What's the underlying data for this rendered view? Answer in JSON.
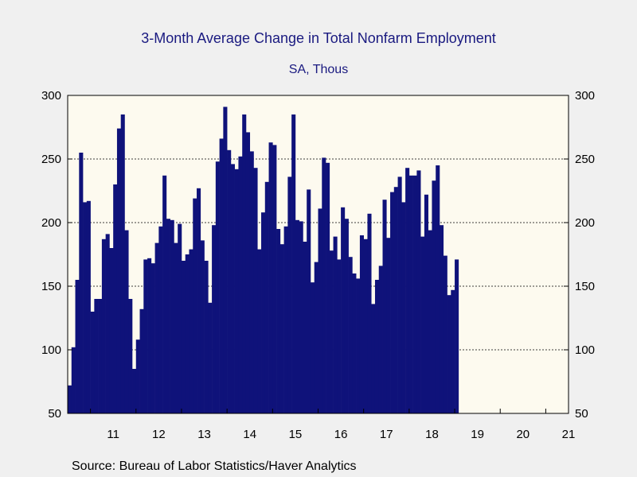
{
  "chart_data": {
    "type": "bar",
    "title": "3-Month Average Change in Total Nonfarm Employment",
    "subtitle": "SA, Thous",
    "source": "Source:  Bureau of Labor Statistics/Haver Analytics",
    "y_ticks": [
      50,
      100,
      150,
      200,
      250,
      300
    ],
    "ylim": [
      50,
      300
    ],
    "x_tick_labels": [
      "11",
      "12",
      "13",
      "14",
      "15",
      "16",
      "17",
      "18",
      "19",
      "20",
      "21"
    ],
    "x_start": "2010-07",
    "x_end": "2021-06",
    "grid": "horizontal-dashed",
    "colors": {
      "bar": "#0f127a",
      "plot_background": "#fdfaef",
      "page_background": "#f0f0f0",
      "text": "#1a1a80"
    },
    "x": [
      "2010-07",
      "2010-08",
      "2010-09",
      "2010-10",
      "2010-11",
      "2010-12",
      "2011-01",
      "2011-02",
      "2011-03",
      "2011-04",
      "2011-05",
      "2011-06",
      "2011-07",
      "2011-08",
      "2011-09",
      "2011-10",
      "2011-11",
      "2011-12",
      "2012-01",
      "2012-02",
      "2012-03",
      "2012-04",
      "2012-05",
      "2012-06",
      "2012-07",
      "2012-08",
      "2012-09",
      "2012-10",
      "2012-11",
      "2012-12",
      "2013-01",
      "2013-02",
      "2013-03",
      "2013-04",
      "2013-05",
      "2013-06",
      "2013-07",
      "2013-08",
      "2013-09",
      "2013-10",
      "2013-11",
      "2013-12",
      "2014-01",
      "2014-02",
      "2014-03",
      "2014-04",
      "2014-05",
      "2014-06",
      "2014-07",
      "2014-08",
      "2014-09",
      "2014-10",
      "2014-11",
      "2014-12",
      "2015-01",
      "2015-02",
      "2015-03",
      "2015-04",
      "2015-05",
      "2015-06",
      "2015-07",
      "2015-08",
      "2015-09",
      "2015-10",
      "2015-11",
      "2015-12",
      "2016-01",
      "2016-02",
      "2016-03",
      "2016-04",
      "2016-05",
      "2016-06",
      "2016-07",
      "2016-08",
      "2016-09",
      "2016-10",
      "2016-11",
      "2016-12",
      "2017-01",
      "2017-02",
      "2017-03",
      "2017-04",
      "2017-05",
      "2017-06",
      "2017-07",
      "2017-08",
      "2017-09",
      "2017-10",
      "2017-11",
      "2017-12",
      "2018-01",
      "2018-02",
      "2018-03",
      "2018-04",
      "2018-05",
      "2018-06",
      "2018-07",
      "2018-08",
      "2018-09",
      "2018-10",
      "2018-11",
      "2018-12",
      "2019-01"
    ],
    "values": [
      72,
      102,
      155,
      255,
      216,
      217,
      130,
      140,
      140,
      187,
      191,
      180,
      230,
      274,
      285,
      194,
      140,
      85,
      108,
      132,
      171,
      172,
      168,
      184,
      197,
      237,
      203,
      202,
      184,
      199,
      170,
      175,
      179,
      219,
      227,
      186,
      170,
      137,
      198,
      248,
      266,
      291,
      257,
      246,
      242,
      252,
      285,
      271,
      256,
      243,
      179,
      208,
      232,
      263,
      261,
      195,
      183,
      197,
      236,
      285,
      202,
      201,
      185,
      226,
      153,
      169,
      211,
      251,
      247,
      178,
      189,
      171,
      212,
      203,
      173,
      160,
      156,
      190,
      187,
      207,
      136,
      155,
      166,
      218,
      188,
      224,
      228,
      236,
      216,
      243,
      237,
      237,
      241,
      189,
      222,
      194,
      233,
      245,
      198,
      174,
      143,
      147,
      171
    ]
  }
}
